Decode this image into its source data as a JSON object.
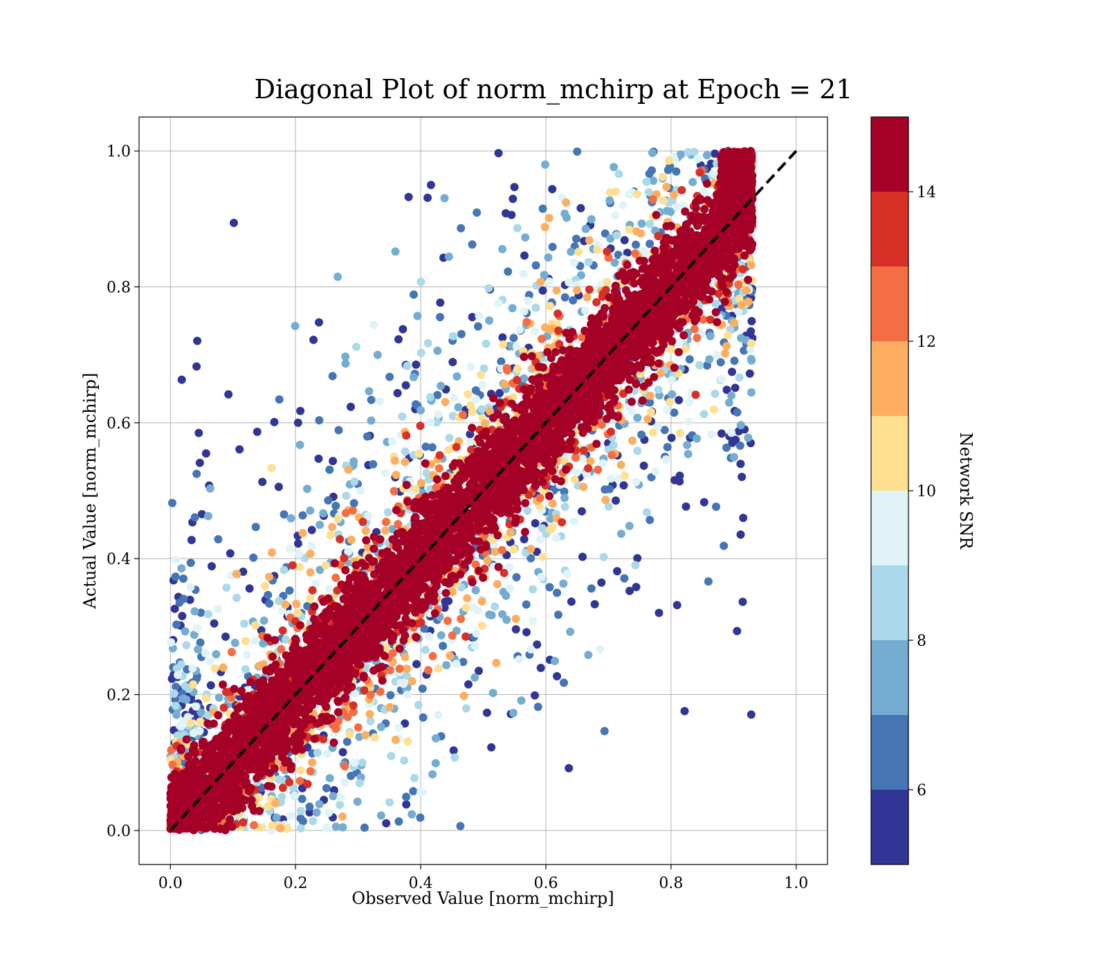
{
  "chart_data": {
    "type": "scatter",
    "title": "Diagonal Plot of norm_mchirp at Epoch = 21",
    "xlabel": "Observed Value [norm_mchirp]",
    "ylabel": "Actual Value [norm_mchirp]",
    "xlim": [
      -0.05,
      1.05
    ],
    "ylim": [
      -0.05,
      1.05
    ],
    "xticks": [
      "0.0",
      "0.2",
      "0.4",
      "0.6",
      "0.8",
      "1.0"
    ],
    "yticks": [
      "0.0",
      "0.2",
      "0.4",
      "0.6",
      "0.8",
      "1.0"
    ],
    "grid": true,
    "reference_line": {
      "style": "dashed",
      "color": "#000000",
      "from": [
        0.0,
        0.0
      ],
      "to": [
        1.0,
        1.0
      ]
    },
    "observed_range": [
      0.0,
      0.93
    ],
    "colorbar": {
      "label": "Network SNR",
      "range": [
        5,
        15
      ],
      "ticks": [
        "6",
        "8",
        "10",
        "12",
        "14"
      ],
      "levels": [
        5,
        6,
        7,
        8,
        9,
        10,
        11,
        12,
        13,
        14,
        15
      ],
      "colors": [
        "#313695",
        "#4575b4",
        "#74add1",
        "#abd9e9",
        "#e0f3f8",
        "#fee090",
        "#fdae61",
        "#f46d43",
        "#d73027",
        "#a50026"
      ]
    },
    "point_distribution": {
      "description_of_trend": "high-SNR points lie close to the diagonal; low-SNR points scatter widely",
      "spread_by_snr": [
        {
          "snr_max": 6,
          "typical_deviation": 0.28
        },
        {
          "snr_max": 8,
          "typical_deviation": 0.2
        },
        {
          "snr_max": 10,
          "typical_deviation": 0.14
        },
        {
          "snr_max": 12,
          "typical_deviation": 0.1
        },
        {
          "snr_max": 14,
          "typical_deviation": 0.07
        },
        {
          "snr_max": 15,
          "typical_deviation": 0.04
        }
      ]
    }
  }
}
